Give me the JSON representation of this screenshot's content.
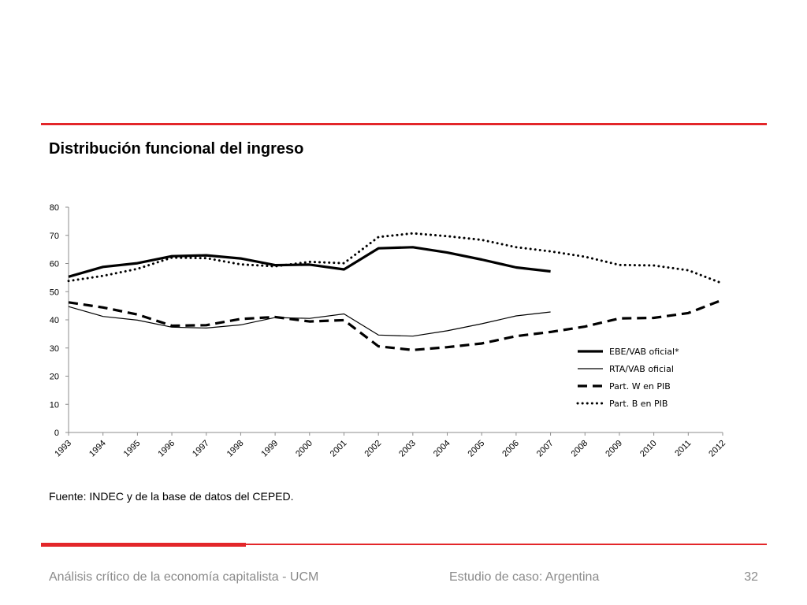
{
  "slide": {
    "title": "Distribución funcional del ingreso",
    "source": "Fuente: INDEC y de la base de datos del CEPED.",
    "footer_left": "Análisis crítico de la economía capitalista - UCM",
    "footer_center": "Estudio de caso: Argentina",
    "page_number": "32",
    "accent_color": "#e3262a"
  },
  "chart_data": {
    "type": "line",
    "title": "",
    "xlabel": "",
    "ylabel": "",
    "categories": [
      "1993",
      "1994",
      "1995",
      "1996",
      "1997",
      "1998",
      "1999",
      "2000",
      "2001",
      "2002",
      "2003",
      "2004",
      "2005",
      "2006",
      "2007",
      "2008",
      "2009",
      "2010",
      "2011",
      "2012"
    ],
    "ylim": [
      0,
      80
    ],
    "yticks": [
      0,
      10,
      20,
      30,
      40,
      50,
      60,
      70,
      80
    ],
    "grid": false,
    "legend_position": "bottom-right",
    "series": [
      {
        "name": "EBE/VAB oficial*",
        "style": "solid-thick",
        "values": [
          55.3,
          58.8,
          60.1,
          62.6,
          62.9,
          61.8,
          59.4,
          59.6,
          57.9,
          65.4,
          65.8,
          63.9,
          61.4,
          58.6,
          57.2,
          null,
          null,
          null,
          null,
          null
        ]
      },
      {
        "name": "RTA/VAB oficial",
        "style": "solid-thin",
        "values": [
          44.7,
          41.2,
          39.9,
          37.4,
          37.1,
          38.2,
          40.8,
          40.5,
          42.1,
          34.6,
          34.2,
          36.1,
          38.6,
          41.4,
          42.8,
          null,
          null,
          null,
          null,
          null
        ]
      },
      {
        "name": "Part. W en PIB",
        "style": "dashed",
        "values": [
          46.2,
          44.4,
          41.9,
          37.9,
          38.1,
          40.3,
          41.0,
          39.4,
          39.9,
          30.6,
          29.3,
          30.3,
          31.6,
          34.2,
          35.7,
          37.6,
          40.5,
          40.7,
          42.4,
          47.1
        ]
      },
      {
        "name": "Part. B en PIB",
        "style": "dotted",
        "values": [
          53.8,
          55.6,
          58.1,
          62.1,
          61.9,
          59.7,
          59.0,
          60.6,
          60.1,
          69.4,
          70.7,
          69.7,
          68.4,
          65.8,
          64.3,
          62.4,
          59.5,
          59.3,
          57.6,
          52.9
        ]
      }
    ]
  }
}
